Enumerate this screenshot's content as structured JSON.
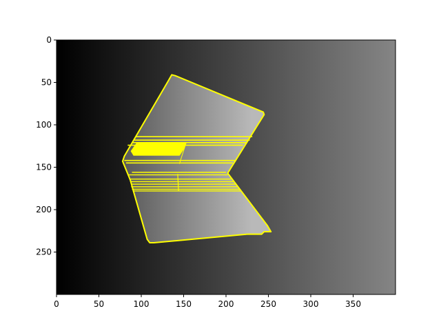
{
  "chart_data": {
    "type": "image",
    "title": "",
    "xlabel": "",
    "ylabel": "",
    "xlim": [
      0,
      400
    ],
    "ylim": [
      300,
      0
    ],
    "x_ticks": [
      0,
      50,
      100,
      150,
      200,
      250,
      300,
      350
    ],
    "y_ticks": [
      0,
      50,
      100,
      150,
      200,
      250
    ],
    "x_tick_labels": [
      "0",
      "50",
      "100",
      "150",
      "200",
      "250",
      "300",
      "350"
    ],
    "y_tick_labels": [
      "0",
      "50",
      "100",
      "150",
      "200",
      "250"
    ],
    "background": {
      "kind": "horizontal-gradient",
      "start_color": "#000000",
      "end_color": "#858585"
    },
    "object": {
      "outline_color": "#ffff00",
      "fill_start_color": "#5a5a5a",
      "fill_end_color": "#b9b9b9",
      "outline": [
        [
          136,
          41
        ],
        [
          140,
          42
        ],
        [
          244,
          85
        ],
        [
          245,
          88
        ],
        [
          202,
          157
        ],
        [
          249,
          219
        ],
        [
          253,
          226
        ],
        [
          245,
          226
        ],
        [
          242,
          229
        ],
        [
          225,
          229
        ],
        [
          115,
          239
        ],
        [
          110,
          239
        ],
        [
          107,
          235
        ],
        [
          87,
          165
        ],
        [
          78,
          143
        ],
        [
          80,
          137
        ],
        [
          132,
          48
        ]
      ],
      "band_upper": {
        "y_top": 114,
        "y_bottom": 146,
        "left_x": 80,
        "right_x": 231
      },
      "band_upper_solid": [
        [
          95,
          121
        ],
        [
          153,
          121
        ],
        [
          151,
          127
        ],
        [
          145,
          136
        ],
        [
          91,
          136
        ],
        [
          88,
          131
        ]
      ],
      "band_upper_lines": [
        {
          "x1": 93,
          "x2": 231,
          "y": 114
        },
        {
          "x1": 91,
          "x2": 228,
          "y": 118
        },
        {
          "x1": 89,
          "x2": 225,
          "y": 121
        },
        {
          "x1": 84,
          "x2": 220,
          "y": 124
        },
        {
          "x1": 80,
          "x2": 212,
          "y": 142
        },
        {
          "x1": 82,
          "x2": 208,
          "y": 145
        }
      ],
      "band_lower_lines": [
        {
          "x1": 84,
          "x2": 202,
          "y": 159
        },
        {
          "x1": 86,
          "x2": 206,
          "y": 164
        },
        {
          "x1": 87,
          "x2": 209,
          "y": 167
        },
        {
          "x1": 88,
          "x2": 212,
          "y": 170
        },
        {
          "x1": 88,
          "x2": 213,
          "y": 173
        },
        {
          "x1": 89,
          "x2": 216,
          "y": 176
        },
        {
          "x1": 90,
          "x2": 218,
          "y": 178
        }
      ],
      "band_lower_separator": [
        [
          143,
          158
        ],
        [
          144,
          178
        ]
      ],
      "band_lower_top": {
        "x1": 89,
        "x2": 200,
        "y": 156
      }
    }
  }
}
